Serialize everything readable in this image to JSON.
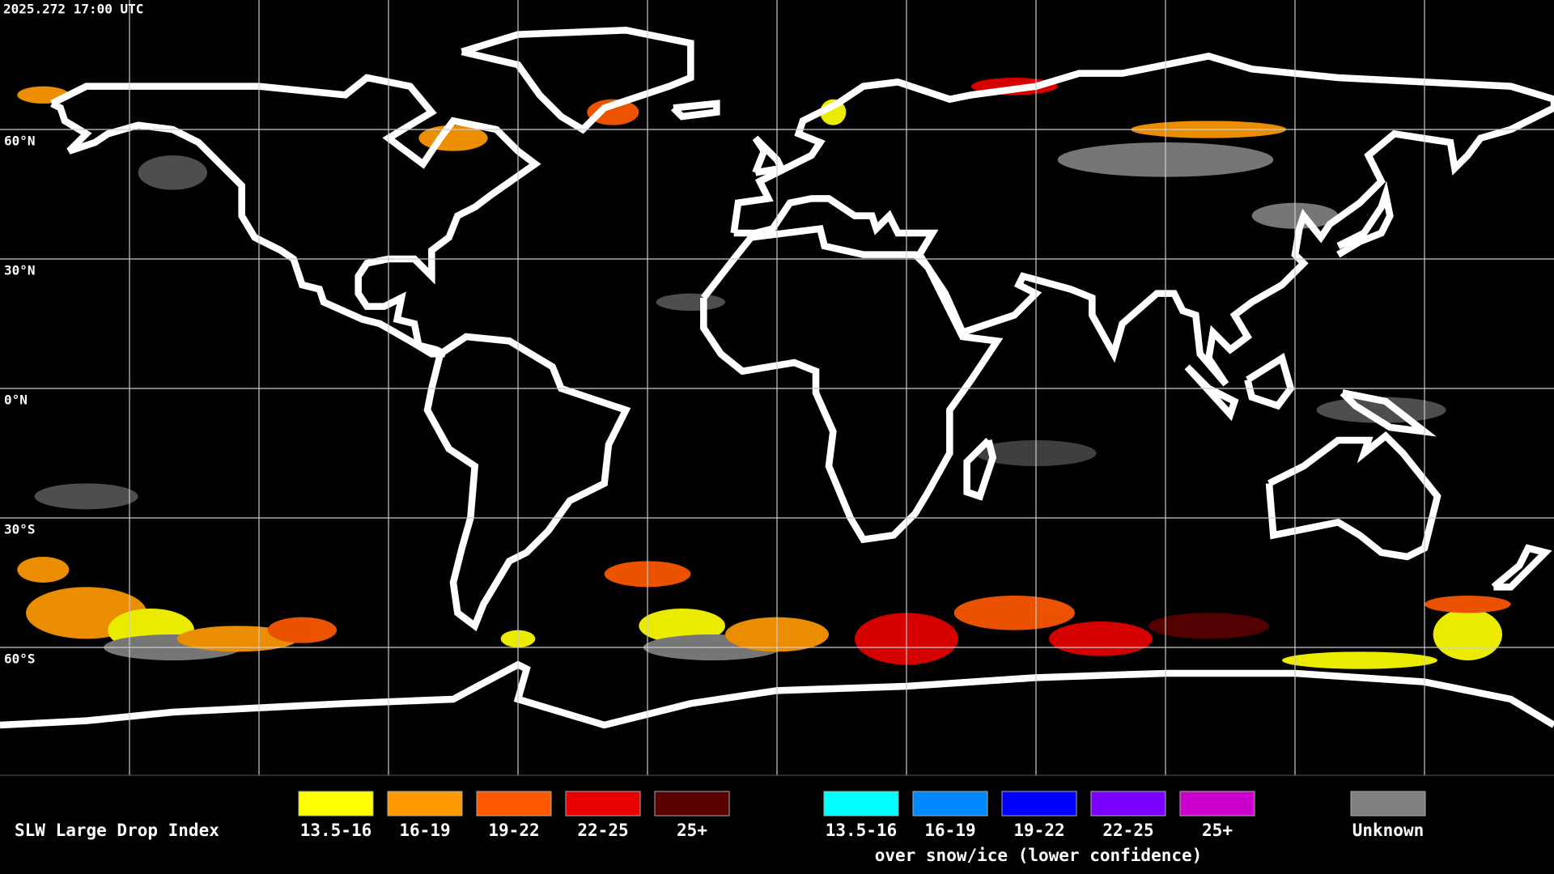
{
  "header": {
    "timestamp": "2025.272 17:00 UTC"
  },
  "map": {
    "latitude_labels": [
      "60°N",
      "30°N",
      "0°N",
      "30°S",
      "60°S"
    ]
  },
  "legend": {
    "title": "SLW Large Drop Index",
    "groups": [
      {
        "items": [
          {
            "label": "13.5-16",
            "color": "#ffff00"
          },
          {
            "label": "16-19",
            "color": "#ff9a00"
          },
          {
            "label": "19-22",
            "color": "#ff5a00"
          },
          {
            "label": "22-25",
            "color": "#e80000"
          },
          {
            "label": "25+",
            "color": "#5a0000"
          }
        ]
      },
      {
        "items": [
          {
            "label": "13.5-16",
            "color": "#00ffff"
          },
          {
            "label": "16-19",
            "color": "#0088ff"
          },
          {
            "label": "19-22",
            "color": "#0000ff"
          },
          {
            "label": "22-25",
            "color": "#7a00ff"
          },
          {
            "label": "25+",
            "color": "#cc00cc"
          }
        ]
      }
    ],
    "snow_ice_note": "over snow/ice (lower confidence)",
    "unknown": {
      "label": "Unknown",
      "color": "#808080"
    }
  }
}
